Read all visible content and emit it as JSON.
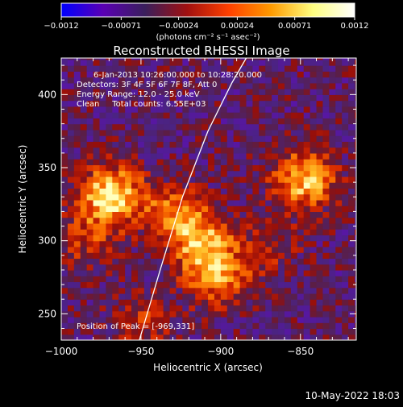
{
  "chart_data": {
    "type": "heatmap",
    "title": "Reconstructed RHESSI Image",
    "xlabel": "Heliocentric X (arcsec)",
    "ylabel": "Heliocentric Y (arcsec)",
    "xlim": [
      -1000,
      -815
    ],
    "ylim": [
      232,
      425
    ],
    "x_ticks": [
      -1000,
      -950,
      -900,
      -850
    ],
    "y_ticks": [
      250,
      300,
      350,
      400
    ],
    "x_tick_labels": [
      "−1000",
      "−950",
      "−900",
      "−850"
    ],
    "y_tick_labels": [
      "250",
      "300",
      "350",
      "400"
    ],
    "colorbar": {
      "range": [
        -0.0012,
        0.0012
      ],
      "ticks": [
        -0.0012,
        -0.00071,
        -0.00024,
        0.00024,
        0.00071,
        0.0012
      ],
      "tick_labels": [
        "−0.0012",
        "−0.00071",
        "−0.00024",
        "0.00024",
        "0.00071",
        "0.0012"
      ],
      "unit_label": "(photons cm⁻² s⁻¹ asec⁻²)",
      "colormap": [
        "#0000ff",
        "#5a00b4",
        "#3a1f5c",
        "#a01010",
        "#ff4000",
        "#ff9a00",
        "#ffff80",
        "#ffffff"
      ]
    },
    "annotations": [
      "6-Jan-2013 10:26:00.000 to 10:28:20.000",
      "Detectors: 3F 4F 5F 6F 7F 8F, Att 0",
      "Energy Range: 12.0 - 25.0 keV",
      "Clean     Total counts: 6.55E+03"
    ],
    "peak_label": "Position of Peak = [-969,331]",
    "peak": {
      "x": -969,
      "y": 331
    },
    "sources": [
      {
        "x": -969,
        "y": 331,
        "intensity": 1.0
      },
      {
        "x": -848,
        "y": 342,
        "intensity": 0.85
      },
      {
        "x": -912,
        "y": 300,
        "intensity": 0.75
      },
      {
        "x": -902,
        "y": 275,
        "intensity": 0.65
      },
      {
        "x": -930,
        "y": 320,
        "intensity": 0.5
      },
      {
        "x": -985,
        "y": 300,
        "intensity": 0.35
      },
      {
        "x": -950,
        "y": 245,
        "intensity": 0.35
      },
      {
        "x": -870,
        "y": 295,
        "intensity": 0.3
      }
    ],
    "limb_curve": [
      [
        -951,
        232
      ],
      [
        -938,
        280
      ],
      [
        -924,
        330
      ],
      [
        -908,
        375
      ],
      [
        -893,
        408
      ],
      [
        -884,
        425
      ]
    ]
  },
  "footer_date": "10-May-2022 18:03"
}
